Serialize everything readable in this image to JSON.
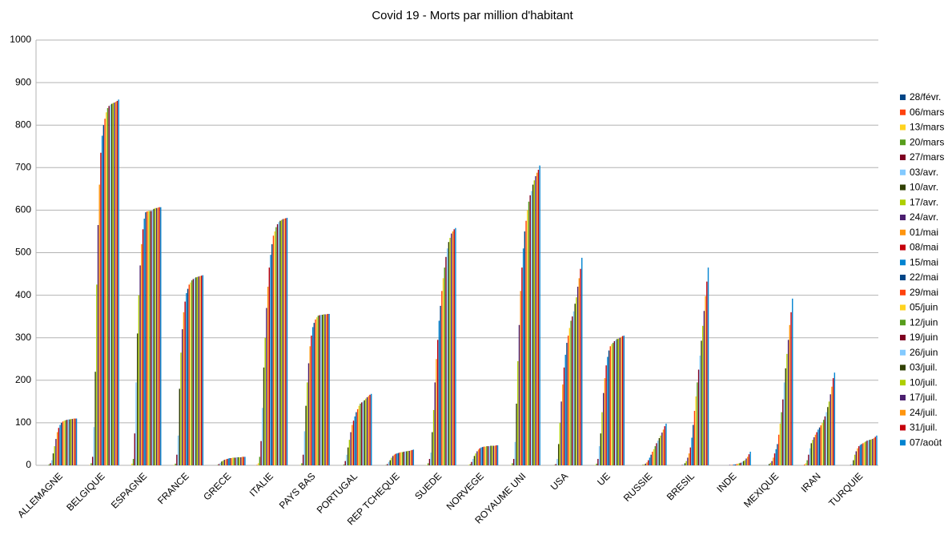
{
  "chart_data": {
    "type": "bar",
    "title": "Covid 19 - Morts par million d'habitant",
    "categories": [
      "ALLEMAGNE",
      "BELGIQUE",
      "ESPAGNE",
      "FRANCE",
      "GRECE",
      "ITALIE",
      "PAYS BAS",
      "PORTUGAL",
      "REP TCHEQUE",
      "SUEDE",
      "NORVEGE",
      "ROYAUME UNI",
      "USA",
      "UE",
      "RUSSIE",
      "BRESIL",
      "INDE",
      "MEXIQUE",
      "IRAN",
      "TURQUIE"
    ],
    "ylim": [
      0,
      1000
    ],
    "yticks": [
      0,
      100,
      200,
      300,
      400,
      500,
      600,
      700,
      800,
      900,
      1000
    ],
    "grid": true,
    "legend": "right",
    "series": [
      {
        "name": "28/févr.",
        "color": "#004586",
        "values": [
          0,
          0,
          0,
          0,
          0,
          0,
          0,
          0,
          0,
          0,
          0,
          0,
          0,
          0,
          0,
          0,
          0,
          0,
          0,
          0
        ]
      },
      {
        "name": "06/mars",
        "color": "#ff420e",
        "values": [
          0,
          0,
          0,
          0,
          0,
          1,
          0,
          0,
          0,
          0,
          0,
          0,
          0,
          0,
          0,
          0,
          0,
          0,
          2,
          0
        ]
      },
      {
        "name": "13/mars",
        "color": "#ffd320",
        "values": [
          0,
          1,
          4,
          1,
          0,
          5,
          1,
          0,
          0,
          1,
          1,
          1,
          0,
          1,
          0,
          0,
          0,
          0,
          5,
          0
        ]
      },
      {
        "name": "20/mars",
        "color": "#579d1c",
        "values": [
          2,
          5,
          15,
          4,
          1,
          20,
          5,
          2,
          1,
          5,
          3,
          5,
          1,
          4,
          0,
          0,
          0,
          0,
          12,
          0
        ]
      },
      {
        "name": "27/mars",
        "color": "#7e0021",
        "values": [
          5,
          20,
          75,
          25,
          3,
          57,
          25,
          10,
          3,
          15,
          8,
          15,
          3,
          15,
          0,
          1,
          0,
          0,
          25,
          1
        ]
      },
      {
        "name": "03/avr.",
        "color": "#83caff",
        "values": [
          12,
          90,
          195,
          70,
          6,
          135,
          80,
          25,
          8,
          30,
          15,
          55,
          15,
          45,
          0,
          2,
          0,
          1,
          40,
          3
        ]
      },
      {
        "name": "10/avr.",
        "color": "#314004",
        "values": [
          28,
          220,
          310,
          180,
          9,
          230,
          140,
          42,
          12,
          78,
          22,
          145,
          50,
          75,
          1,
          5,
          0,
          3,
          52,
          12
        ]
      },
      {
        "name": "17/avr.",
        "color": "#aecf00",
        "values": [
          45,
          425,
          400,
          265,
          11,
          300,
          195,
          60,
          18,
          130,
          28,
          245,
          100,
          125,
          2,
          10,
          0,
          6,
          60,
          25
        ]
      },
      {
        "name": "24/avr.",
        "color": "#4b1f6f",
        "values": [
          62,
          565,
          470,
          320,
          13,
          370,
          240,
          78,
          22,
          195,
          33,
          330,
          150,
          170,
          4,
          18,
          1,
          10,
          66,
          33
        ]
      },
      {
        "name": "01/mai",
        "color": "#ff950e",
        "values": [
          78,
          660,
          520,
          360,
          14,
          420,
          280,
          95,
          25,
          250,
          37,
          410,
          190,
          205,
          7,
          28,
          1,
          18,
          72,
          40
        ]
      },
      {
        "name": "08/mai",
        "color": "#c5000b",
        "values": [
          88,
          735,
          555,
          385,
          15,
          465,
          305,
          105,
          27,
          295,
          40,
          465,
          230,
          235,
          12,
          42,
          1,
          28,
          78,
          45
        ]
      },
      {
        "name": "15/mai",
        "color": "#0084d1",
        "values": [
          95,
          775,
          580,
          405,
          16,
          495,
          325,
          115,
          28,
          340,
          42,
          510,
          260,
          255,
          18,
          65,
          2,
          38,
          84,
          48
        ]
      },
      {
        "name": "22/mai",
        "color": "#004586",
        "values": [
          100,
          800,
          595,
          415,
          17,
          520,
          335,
          125,
          29,
          375,
          43,
          550,
          288,
          270,
          25,
          95,
          2,
          50,
          89,
          50
        ]
      },
      {
        "name": "29/mai",
        "color": "#ff420e",
        "values": [
          103,
          815,
          597,
          425,
          17,
          540,
          343,
          132,
          30,
          410,
          44,
          575,
          305,
          280,
          32,
          128,
          3,
          72,
          94,
          52
        ]
      },
      {
        "name": "05/juin",
        "color": "#ffd320",
        "values": [
          105,
          830,
          598,
          430,
          18,
          550,
          348,
          140,
          31,
          440,
          44,
          600,
          323,
          285,
          38,
          162,
          4,
          98,
          100,
          54
        ]
      },
      {
        "name": "12/juin",
        "color": "#579d1c",
        "values": [
          106,
          840,
          598,
          435,
          18,
          560,
          352,
          145,
          31,
          465,
          45,
          620,
          340,
          288,
          45,
          195,
          5,
          125,
          107,
          56
        ]
      },
      {
        "name": "19/juin",
        "color": "#7e0021",
        "values": [
          107,
          845,
          598,
          438,
          18,
          567,
          353,
          148,
          32,
          490,
          45,
          635,
          350,
          292,
          52,
          225,
          6,
          155,
          115,
          58
        ]
      },
      {
        "name": "26/juin",
        "color": "#83caff",
        "values": [
          108,
          848,
          600,
          440,
          19,
          572,
          354,
          150,
          33,
          510,
          45,
          645,
          362,
          295,
          58,
          258,
          8,
          195,
          125,
          59
        ]
      },
      {
        "name": "03/juil.",
        "color": "#314004",
        "values": [
          108,
          850,
          603,
          442,
          19,
          575,
          354,
          153,
          33,
          525,
          46,
          660,
          380,
          297,
          64,
          293,
          10,
          228,
          137,
          60
        ]
      },
      {
        "name": "10/juil.",
        "color": "#aecf00",
        "values": [
          109,
          852,
          605,
          443,
          19,
          577,
          355,
          157,
          34,
          535,
          46,
          670,
          395,
          298,
          70,
          328,
          12,
          262,
          150,
          61
        ]
      },
      {
        "name": "17/juil.",
        "color": "#4b1f6f",
        "values": [
          109,
          853,
          605,
          444,
          19,
          579,
          355,
          160,
          34,
          545,
          46,
          680,
          420,
          300,
          77,
          363,
          16,
          295,
          167,
          62
        ]
      },
      {
        "name": "24/juil.",
        "color": "#ff950e",
        "values": [
          110,
          855,
          606,
          445,
          20,
          580,
          355,
          163,
          35,
          550,
          46,
          688,
          440,
          302,
          84,
          398,
          20,
          330,
          185,
          64
        ]
      },
      {
        "name": "31/juil.",
        "color": "#c5000b",
        "values": [
          110,
          857,
          607,
          446,
          20,
          581,
          356,
          166,
          36,
          555,
          47,
          695,
          462,
          304,
          92,
          432,
          26,
          360,
          205,
          67
        ]
      },
      {
        "name": "07/août",
        "color": "#0084d1",
        "values": [
          110,
          860,
          607,
          447,
          20,
          582,
          356,
          168,
          37,
          558,
          47,
          705,
          488,
          305,
          98,
          465,
          32,
          392,
          218,
          70
        ]
      }
    ]
  }
}
